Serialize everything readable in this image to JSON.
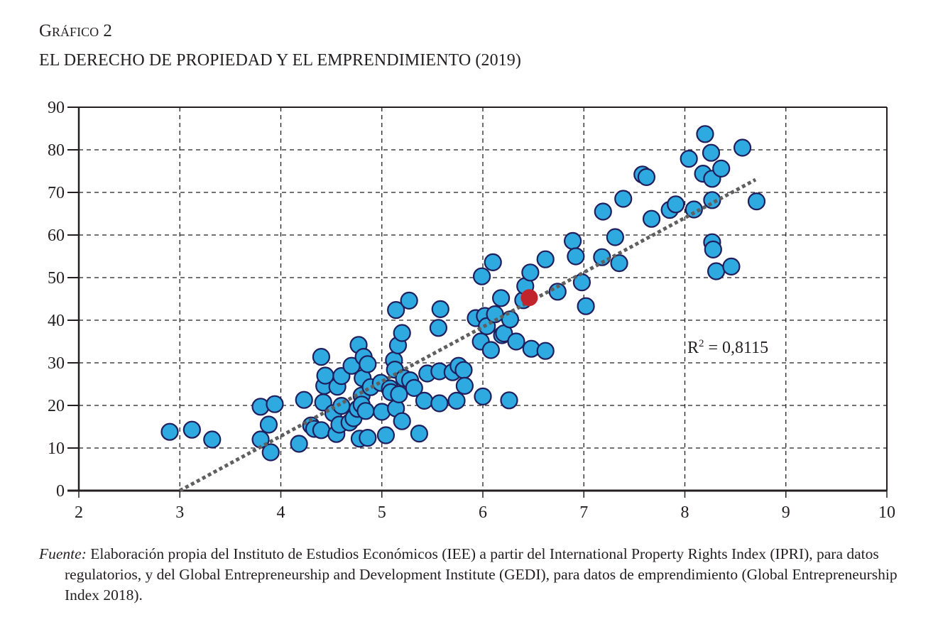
{
  "header": {
    "label": "Gráfico 2",
    "title": "EL DERECHO DE PROPIEDAD Y EL EMPRENDIMIENTO (2019)"
  },
  "source": {
    "prefix": "Fuente:",
    "text": "Elaboración propia del Instituto de Estudios Económicos (IEE) a partir del International Property Rights Index (IPRI), para datos regulatorios, y del Global Entrepreneurship and Development Institute (GEDI), para datos de emprendimiento (Global Entrepreneurship Index 2018)."
  },
  "colors": {
    "point_fill": "#2eaae1",
    "point_stroke": "#1f1f5e",
    "highlight_fill": "#c0242c",
    "trend": "#5f5f5f",
    "grid": "#231f20"
  },
  "chart_data": {
    "type": "scatter",
    "title": "EL DERECHO DE PROPIEDAD Y EL EMPRENDIMIENTO (2019)",
    "xlabel": "",
    "ylabel": "",
    "xlim": [
      2,
      10
    ],
    "ylim": [
      0,
      90
    ],
    "xticks": [
      "2",
      "3",
      "4",
      "5",
      "6",
      "7",
      "8",
      "9",
      "10"
    ],
    "yticks": [
      "0",
      "10",
      "20",
      "30",
      "40",
      "50",
      "60",
      "70",
      "80",
      "90"
    ],
    "grid": true,
    "annotation": "R² = 0,8115",
    "r_squared": 0.8115,
    "trendline": {
      "x": [
        3.0,
        8.7
      ],
      "y": [
        0,
        73
      ]
    },
    "highlight": {
      "x": 6.46,
      "y": 45.3
    },
    "points": [
      [
        2.9,
        13.8
      ],
      [
        3.12,
        14.3
      ],
      [
        3.32,
        12.0
      ],
      [
        3.8,
        19.7
      ],
      [
        3.8,
        12.0
      ],
      [
        3.88,
        15.5
      ],
      [
        3.94,
        20.3
      ],
      [
        3.9,
        9.0
      ],
      [
        4.18,
        11.0
      ],
      [
        4.23,
        21.3
      ],
      [
        4.3,
        15.3
      ],
      [
        4.33,
        14.5
      ],
      [
        4.4,
        31.4
      ],
      [
        4.4,
        14.2
      ],
      [
        4.42,
        20.7
      ],
      [
        4.43,
        24.6
      ],
      [
        4.44,
        27.0
      ],
      [
        4.52,
        18.2
      ],
      [
        4.55,
        13.3
      ],
      [
        4.56,
        24.4
      ],
      [
        4.58,
        15.5
      ],
      [
        4.6,
        19.9
      ],
      [
        4.6,
        26.9
      ],
      [
        4.68,
        16.0
      ],
      [
        4.7,
        29.3
      ],
      [
        4.72,
        17.0
      ],
      [
        4.76,
        19.2
      ],
      [
        4.77,
        34.2
      ],
      [
        4.78,
        12.2
      ],
      [
        4.8,
        22.3
      ],
      [
        4.8,
        20.2
      ],
      [
        4.81,
        26.4
      ],
      [
        4.82,
        31.4
      ],
      [
        4.84,
        18.7
      ],
      [
        4.86,
        29.7
      ],
      [
        4.86,
        12.4
      ],
      [
        4.89,
        24.3
      ],
      [
        4.99,
        25.3
      ],
      [
        5.0,
        18.5
      ],
      [
        5.04,
        13.0
      ],
      [
        5.08,
        24.0
      ],
      [
        5.09,
        23.1
      ],
      [
        5.12,
        30.6
      ],
      [
        5.13,
        28.4
      ],
      [
        5.14,
        42.4
      ],
      [
        5.14,
        19.3
      ],
      [
        5.16,
        34.1
      ],
      [
        5.17,
        22.6
      ],
      [
        5.2,
        37.0
      ],
      [
        5.2,
        16.3
      ],
      [
        5.22,
        26.4
      ],
      [
        5.27,
        44.6
      ],
      [
        5.28,
        25.9
      ],
      [
        5.32,
        24.1
      ],
      [
        5.37,
        13.4
      ],
      [
        5.42,
        21.1
      ],
      [
        5.45,
        27.5
      ],
      [
        5.56,
        38.2
      ],
      [
        5.57,
        20.5
      ],
      [
        5.57,
        28.0
      ],
      [
        5.58,
        42.6
      ],
      [
        5.7,
        27.8
      ],
      [
        5.74,
        21.1
      ],
      [
        5.76,
        29.3
      ],
      [
        5.81,
        28.3
      ],
      [
        5.82,
        24.6
      ],
      [
        5.93,
        40.5
      ],
      [
        5.98,
        35.0
      ],
      [
        5.99,
        50.3
      ],
      [
        6.0,
        22.1
      ],
      [
        6.02,
        41.0
      ],
      [
        6.04,
        38.6
      ],
      [
        6.08,
        33.0
      ],
      [
        6.1,
        53.6
      ],
      [
        6.12,
        41.4
      ],
      [
        6.18,
        45.2
      ],
      [
        6.19,
        36.5
      ],
      [
        6.21,
        36.9
      ],
      [
        6.26,
        21.2
      ],
      [
        6.27,
        40.2
      ],
      [
        6.33,
        35.0
      ],
      [
        6.4,
        44.7
      ],
      [
        6.42,
        48.0
      ],
      [
        6.47,
        51.2
      ],
      [
        6.48,
        33.3
      ],
      [
        6.62,
        32.8
      ],
      [
        6.62,
        54.3
      ],
      [
        6.74,
        46.7
      ],
      [
        6.89,
        58.6
      ],
      [
        6.92,
        55.0
      ],
      [
        6.98,
        48.9
      ],
      [
        7.02,
        43.3
      ],
      [
        7.18,
        54.8
      ],
      [
        7.19,
        65.5
      ],
      [
        7.31,
        59.5
      ],
      [
        7.35,
        53.4
      ],
      [
        7.39,
        68.5
      ],
      [
        7.58,
        74.2
      ],
      [
        7.62,
        73.6
      ],
      [
        7.67,
        63.8
      ],
      [
        7.85,
        65.9
      ],
      [
        7.91,
        67.2
      ],
      [
        8.04,
        77.9
      ],
      [
        8.09,
        66.0
      ],
      [
        8.18,
        74.4
      ],
      [
        8.2,
        83.7
      ],
      [
        8.26,
        79.3
      ],
      [
        8.27,
        58.3
      ],
      [
        8.27,
        68.2
      ],
      [
        8.27,
        73.2
      ],
      [
        8.28,
        56.6
      ],
      [
        8.31,
        51.5
      ],
      [
        8.36,
        75.6
      ],
      [
        8.46,
        52.6
      ],
      [
        8.57,
        80.5
      ],
      [
        8.71,
        67.9
      ]
    ]
  }
}
